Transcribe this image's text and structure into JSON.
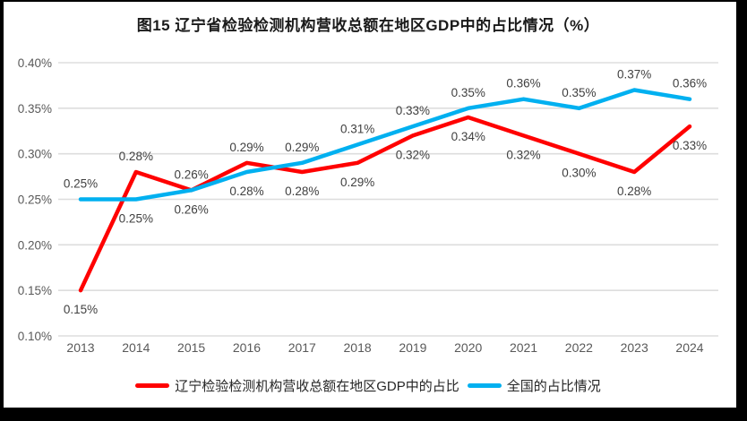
{
  "title": "图15 辽宁省检验检测机构营收总额在地区GDP中的占比情况（%）",
  "chart_data": {
    "type": "line",
    "title": "图15 辽宁省检验检测机构营收总额在地区GDP中的占比情况（%）",
    "categories": [
      "2013",
      "2014",
      "2015",
      "2016",
      "2017",
      "2018",
      "2019",
      "2020",
      "2021",
      "2022",
      "2023",
      "2024"
    ],
    "series": [
      {
        "name": "辽宁检验检测机构营收总额在地区GDP中的占比",
        "color": "#ff0000",
        "values": [
          0.15,
          0.28,
          0.26,
          0.29,
          0.28,
          0.29,
          0.32,
          0.34,
          0.32,
          0.3,
          0.28,
          0.33
        ],
        "labels": [
          "0.15%",
          "0.28%",
          "0.26%",
          "0.29%",
          "0.28%",
          "0.29%",
          "0.32%",
          "0.34%",
          "0.32%",
          "0.30%",
          "0.28%",
          "0.33%"
        ],
        "label_side": [
          "below",
          "above",
          "above",
          "above",
          "below",
          "below",
          "below",
          "below",
          "below",
          "below",
          "below",
          "below"
        ]
      },
      {
        "name": "全国的占比情况",
        "color": "#00b0f0",
        "values": [
          0.25,
          0.25,
          0.26,
          0.28,
          0.29,
          0.31,
          0.33,
          0.35,
          0.36,
          0.35,
          0.37,
          0.36
        ],
        "labels": [
          "0.25%",
          "0.25%",
          "0.26%",
          "0.28%",
          "0.29%",
          "0.31%",
          "0.33%",
          "0.35%",
          "0.36%",
          "0.35%",
          "0.37%",
          "0.36%"
        ],
        "label_side": [
          "above",
          "below",
          "below",
          "below",
          "above",
          "above",
          "above",
          "above",
          "above",
          "above",
          "above",
          "above"
        ]
      }
    ],
    "ylim": [
      0.1,
      0.4
    ],
    "ytick_labels": [
      "0.10%",
      "0.15%",
      "0.20%",
      "0.25%",
      "0.30%",
      "0.35%",
      "0.40%"
    ],
    "unit": "%",
    "grid": "horizontal",
    "legend_position": "bottom"
  },
  "colors": {
    "grid_line": "#dddddd",
    "tick_text": "#595959",
    "data_label_text": "#404040",
    "title_text": "#1a1a1a",
    "frame": "#000000",
    "background": "#ffffff"
  }
}
